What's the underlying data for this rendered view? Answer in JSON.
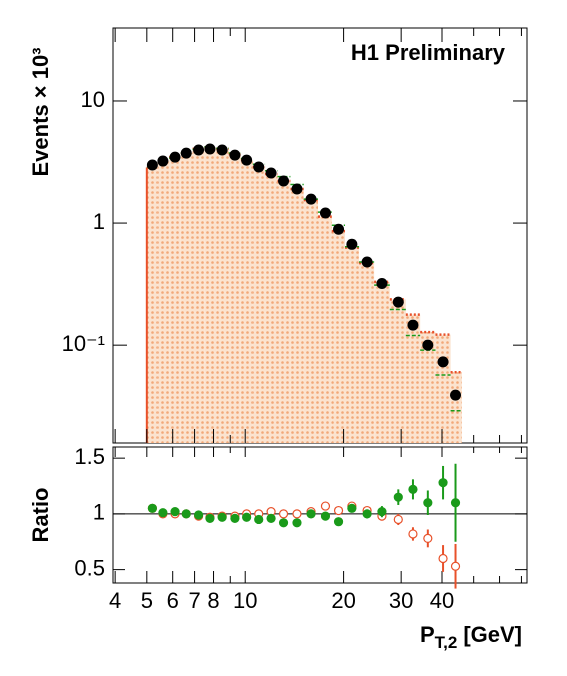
{
  "chart_data": [
    {
      "type": "histogram",
      "annotation": "H1 Preliminary",
      "ylabel": "Events × 10³",
      "log_y": true,
      "xlim": [
        3.94,
        72.8
      ],
      "ylim": [
        0.0158,
        39.6
      ],
      "yticks": [
        {
          "value": 0.1,
          "label": "10⁻¹"
        },
        1,
        10
      ],
      "x": [
        5.2,
        5.6,
        6.1,
        6.6,
        7.2,
        7.8,
        8.5,
        9.3,
        10.1,
        11,
        12,
        13.1,
        14.4,
        15.9,
        17.6,
        19.3,
        21.2,
        23.6,
        26.2,
        29.4,
        32.6,
        36.2,
        40.3,
        44
      ],
      "bins": [
        5,
        5.4,
        5.85,
        6.35,
        6.9,
        7.5,
        8.15,
        8.9,
        9.7,
        10.55,
        11.5,
        12.55,
        13.75,
        15.1,
        16.7,
        18.4,
        20.2,
        22.3,
        24.8,
        27.7,
        31,
        34.3,
        38.2,
        42.5,
        46
      ],
      "series": [
        {
          "color": "#000000",
          "values": [
            2.99,
            3.22,
            3.47,
            3.74,
            3.97,
            4.04,
            3.97,
            3.6,
            3.28,
            2.88,
            2.57,
            2.21,
            1.9,
            1.57,
            1.21,
            0.89,
            0.67,
            0.48,
            0.32,
            0.225,
            0.146,
            0.1,
            0.073,
            0.039
          ]
        },
        {
          "color": "#e8512a",
          "fill": "#f7c9a2",
          "values": [
            2.85,
            3.22,
            3.47,
            3.74,
            4.05,
            4.16,
            4.05,
            3.67,
            3.28,
            2.88,
            2.52,
            2.21,
            1.9,
            1.54,
            1.13,
            0.86,
            0.63,
            0.47,
            0.33,
            0.237,
            0.178,
            0.128,
            0.122,
            0.06
          ]
        },
        {
          "color": "#1a9a1a",
          "values": [
            2.85,
            3.19,
            3.4,
            3.74,
            4.01,
            4.21,
            4.09,
            3.75,
            3.38,
            3.03,
            2.68,
            2.4,
            2.07,
            1.57,
            1.23,
            0.96,
            0.64,
            0.48,
            0.31,
            0.196,
            0.12,
            0.091,
            0.057,
            0.029
          ]
        }
      ]
    },
    {
      "type": "ratio",
      "ylabel": "Ratio",
      "xlabel": "P",
      "xlabel_sub": "T,2",
      "xlabel_unit": "[GeV]",
      "xlim": [
        3.94,
        72.8
      ],
      "ylim": [
        0.38,
        1.6
      ],
      "yticks": [
        0.5,
        1,
        1.5
      ],
      "reference": 1,
      "xticks": [
        4,
        5,
        6,
        7,
        8,
        10,
        20,
        30,
        40
      ],
      "xminorticks": [
        9,
        50,
        60,
        70
      ],
      "x": [
        5.2,
        5.6,
        6.1,
        6.6,
        7.2,
        7.8,
        8.5,
        9.3,
        10.1,
        11,
        12,
        13.1,
        14.4,
        15.9,
        17.6,
        19.3,
        21.2,
        23.6,
        26.2,
        29.4,
        32.6,
        36.2,
        40.3,
        44
      ],
      "series": [
        {
          "color": "#e8512a",
          "marker": "open",
          "values": [
            1.05,
            1.0,
            1.0,
            1.0,
            0.98,
            0.97,
            0.98,
            0.98,
            1.0,
            1.0,
            1.02,
            1.0,
            1.0,
            1.02,
            1.07,
            1.03,
            1.07,
            1.03,
            0.98,
            0.95,
            0.82,
            0.78,
            0.6,
            0.53
          ],
          "errors": [
            0.02,
            0.02,
            0.02,
            0.02,
            0.02,
            0.02,
            0.02,
            0.02,
            0.02,
            0.02,
            0.02,
            0.02,
            0.02,
            0.02,
            0.02,
            0.02,
            0.03,
            0.03,
            0.04,
            0.05,
            0.06,
            0.08,
            0.12,
            0.2
          ]
        },
        {
          "color": "#1a9a1a",
          "marker": "filled",
          "values": [
            1.05,
            1.01,
            1.02,
            1.0,
            0.99,
            0.96,
            0.97,
            0.96,
            0.97,
            0.95,
            0.96,
            0.92,
            0.92,
            1.0,
            0.98,
            0.93,
            1.05,
            1.0,
            1.02,
            1.15,
            1.22,
            1.1,
            1.28,
            1.1
          ],
          "errors": [
            0.02,
            0.02,
            0.02,
            0.02,
            0.02,
            0.02,
            0.02,
            0.02,
            0.02,
            0.02,
            0.02,
            0.02,
            0.02,
            0.02,
            0.02,
            0.03,
            0.03,
            0.04,
            0.05,
            0.07,
            0.09,
            0.11,
            0.15,
            0.35
          ]
        }
      ]
    }
  ]
}
